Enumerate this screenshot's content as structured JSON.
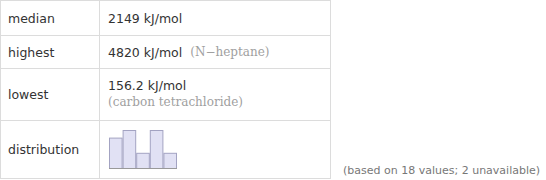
{
  "table": {
    "rows": [
      [
        "median",
        "2149 kJ/mol"
      ],
      [
        "highest",
        "4820 kJ/mol",
        "(N−heptane)"
      ],
      [
        "lowest",
        "156.2 kJ/mol",
        "(carbon tetrachloride)"
      ],
      [
        "distribution"
      ]
    ]
  },
  "note": "(based on 18 values; 2 unavailable)",
  "chart_data": {
    "type": "histogram",
    "bins": [
      0,
      1000,
      2000,
      3000,
      4000,
      5000
    ],
    "values": [
      4,
      5,
      2,
      5,
      2
    ],
    "ylim": [
      0,
      5
    ],
    "tick_labels": false,
    "color": "#e1e1f4"
  }
}
